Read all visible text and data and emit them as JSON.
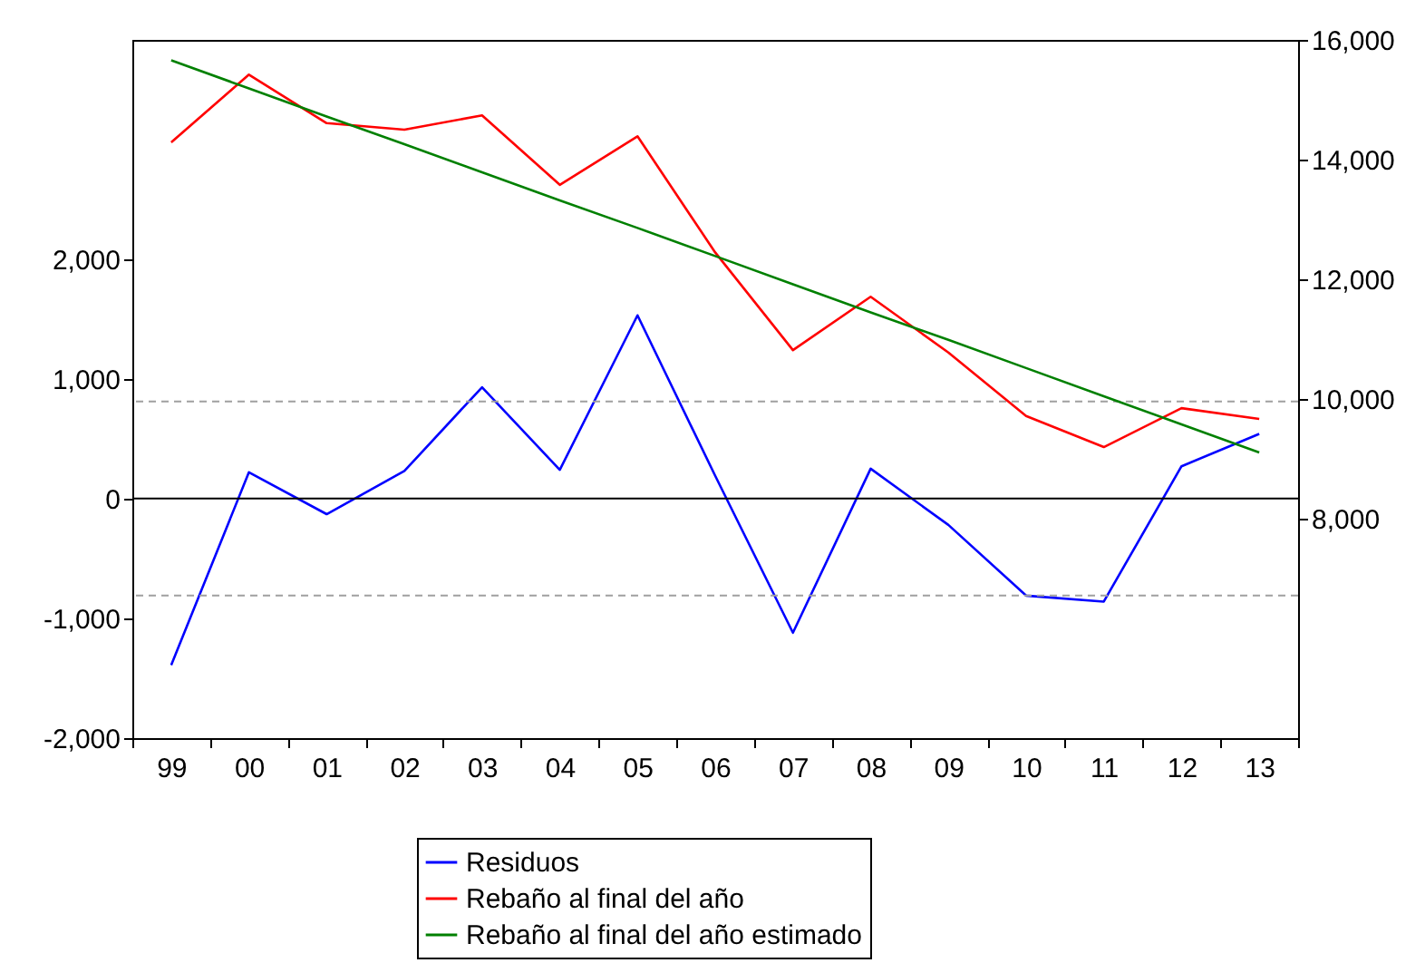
{
  "chart_data": {
    "type": "line",
    "categories": [
      "99",
      "00",
      "01",
      "02",
      "03",
      "04",
      "05",
      "06",
      "07",
      "08",
      "09",
      "10",
      "11",
      "12",
      "13"
    ],
    "series": [
      {
        "name": "Residuos",
        "color": "#0000ff",
        "values": [
          -1390,
          220,
          -130,
          230,
          930,
          240,
          1530,
          190,
          -1120,
          250,
          -220,
          -810,
          -860,
          270,
          540
        ]
      },
      {
        "name": "Rebaño al final del año",
        "color": "#ff0000",
        "axis": "y2",
        "values": [
          14290,
          15420,
          14610,
          14500,
          14740,
          13580,
          14390,
          12450,
          10820,
          11710,
          10780,
          9720,
          9200,
          9850,
          9670
        ]
      },
      {
        "name": "Rebaño al final del año estimado",
        "color": "#008000",
        "axis": "y2",
        "values": [
          15660,
          15190,
          14720,
          14260,
          13790,
          13320,
          12860,
          12390,
          11920,
          11450,
          10990,
          10520,
          10050,
          9580,
          9110
        ]
      }
    ],
    "ylim": [
      -2000,
      3830
    ],
    "yticks": [
      {
        "value": -2000,
        "label": "-2,000"
      },
      {
        "value": -1000,
        "label": "-1,000"
      },
      0,
      {
        "value": 1000,
        "label": "1,000"
      },
      {
        "value": 2000,
        "label": "2,000"
      }
    ],
    "y2lim": [
      4340,
      16000
    ],
    "y2ticks": [
      {
        "value": 8000,
        "label": "8,000"
      },
      {
        "value": 10000,
        "label": "10,000"
      },
      {
        "value": 12000,
        "label": "12,000"
      },
      {
        "value": 14000,
        "label": "14,000"
      },
      {
        "value": 16000,
        "label": "16,000"
      }
    ],
    "ref_lines": [
      {
        "axis": "y",
        "value": 0,
        "color": "#000000",
        "line_style": "solid"
      },
      {
        "axis": "y",
        "value": 810,
        "color": "#a0a0a0",
        "line_style": "dashed"
      },
      {
        "axis": "y",
        "value": -810,
        "color": "#a0a0a0",
        "line_style": "dashed"
      }
    ],
    "grid": false,
    "legend": "bottom"
  }
}
